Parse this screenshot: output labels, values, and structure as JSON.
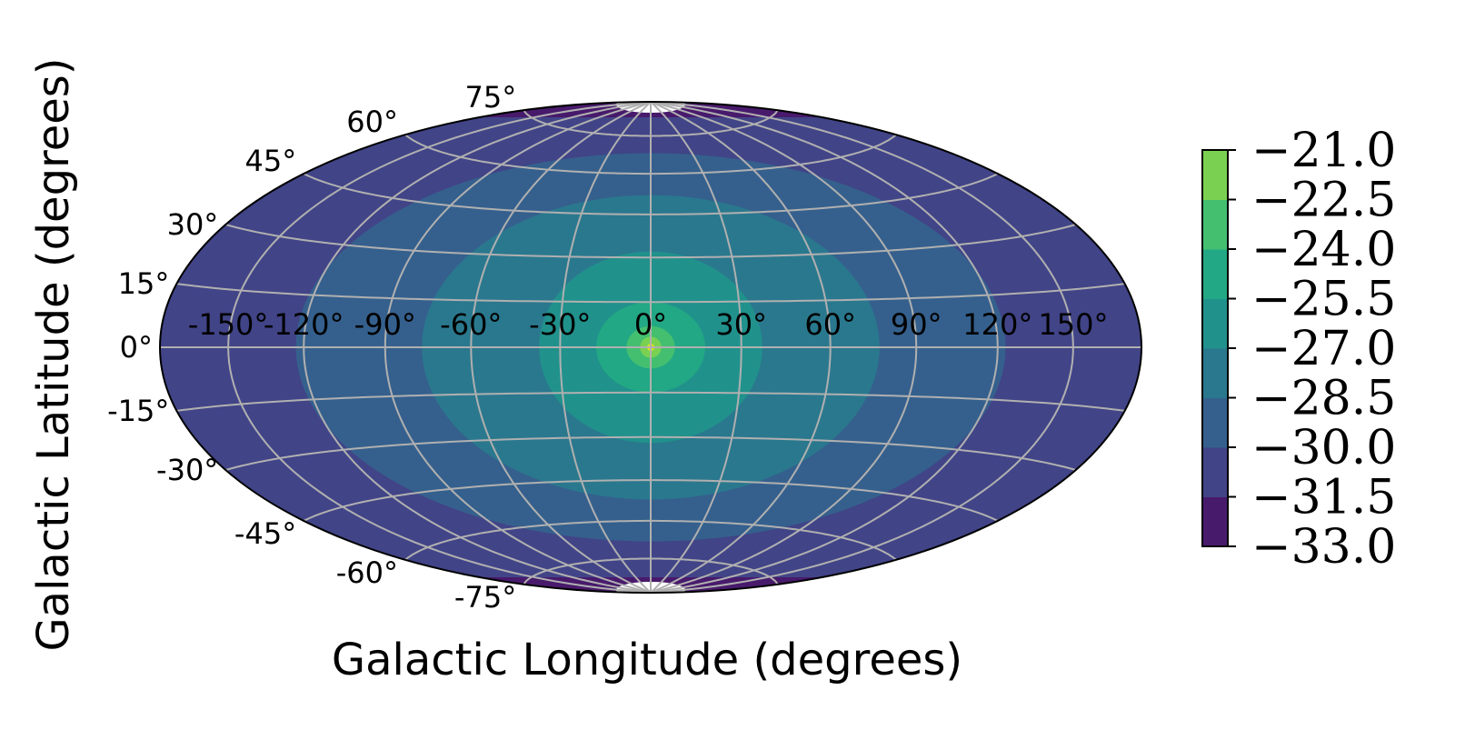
{
  "chart_data": {
    "type": "heatmap",
    "projection": "hammer",
    "title": "",
    "xlabel": "Galactic Longitude (degrees)",
    "ylabel": "Galactic Latitude (degrees)",
    "xlim": [
      -180,
      180
    ],
    "ylim": [
      -90,
      90
    ],
    "grid": true,
    "longitude_ticks": [
      -150,
      -120,
      -90,
      -60,
      -30,
      0,
      30,
      60,
      90,
      120,
      150
    ],
    "longitude_tick_labels": [
      "-150°",
      "-120°",
      "-90°",
      "-60°",
      "-30°",
      "0°",
      "30°",
      "60°",
      "90°",
      "120°",
      "150°"
    ],
    "latitude_ticks": [
      75,
      60,
      45,
      30,
      15,
      0,
      -15,
      -30,
      -45,
      -60,
      -75
    ],
    "latitude_tick_labels": [
      "75°",
      "60°",
      "45°",
      "30°",
      "15°",
      "0°",
      "-15°",
      "-30°",
      "-45°",
      "-60°",
      "-75°"
    ],
    "colorbar": {
      "colormap": "viridis",
      "levels": [
        -33.0,
        -31.5,
        -30.0,
        -28.5,
        -27.0,
        -25.5,
        -24.0,
        -22.5,
        -21.0
      ],
      "tick_labels": [
        "−33.0",
        "−31.5",
        "−30.0",
        "−28.5",
        "−27.0",
        "−25.5",
        "−24.0",
        "−22.5",
        "−21.0"
      ],
      "band_colors": [
        "#481a6c",
        "#414487",
        "#35608d",
        "#2a788e",
        "#21918c",
        "#22a884",
        "#44bf70",
        "#7ad151",
        "#dde318"
      ]
    },
    "contour_regions": [
      {
        "level_range": [
          -33.0,
          -31.5
        ],
        "description": "near the poles",
        "lat_min_abs": 83
      },
      {
        "level_range": [
          -31.5,
          -30.0
        ],
        "rx_deg": 180,
        "ry_deg": 90
      },
      {
        "level_range": [
          -30.0,
          -28.5
        ],
        "rx_deg": 123,
        "ry_deg": 68
      },
      {
        "level_range": [
          -28.5,
          -27.0
        ],
        "rx_deg": 77,
        "ry_deg": 52
      },
      {
        "level_range": [
          -27.0,
          -25.5
        ],
        "rx_deg": 37,
        "ry_deg": 32
      },
      {
        "level_range": [
          -25.5,
          -24.0
        ],
        "rx_deg": 18,
        "ry_deg": 15
      },
      {
        "level_range": [
          -24.0,
          -22.5
        ],
        "rx_deg": 8,
        "ry_deg": 7
      },
      {
        "level_range": [
          -22.5,
          -21.0
        ],
        "rx_deg": 3.5,
        "ry_deg": 3.5
      },
      {
        "level_range": [
          -21.0,
          -21.0
        ],
        "rx_deg": 1.2,
        "ry_deg": 1.2
      }
    ]
  }
}
